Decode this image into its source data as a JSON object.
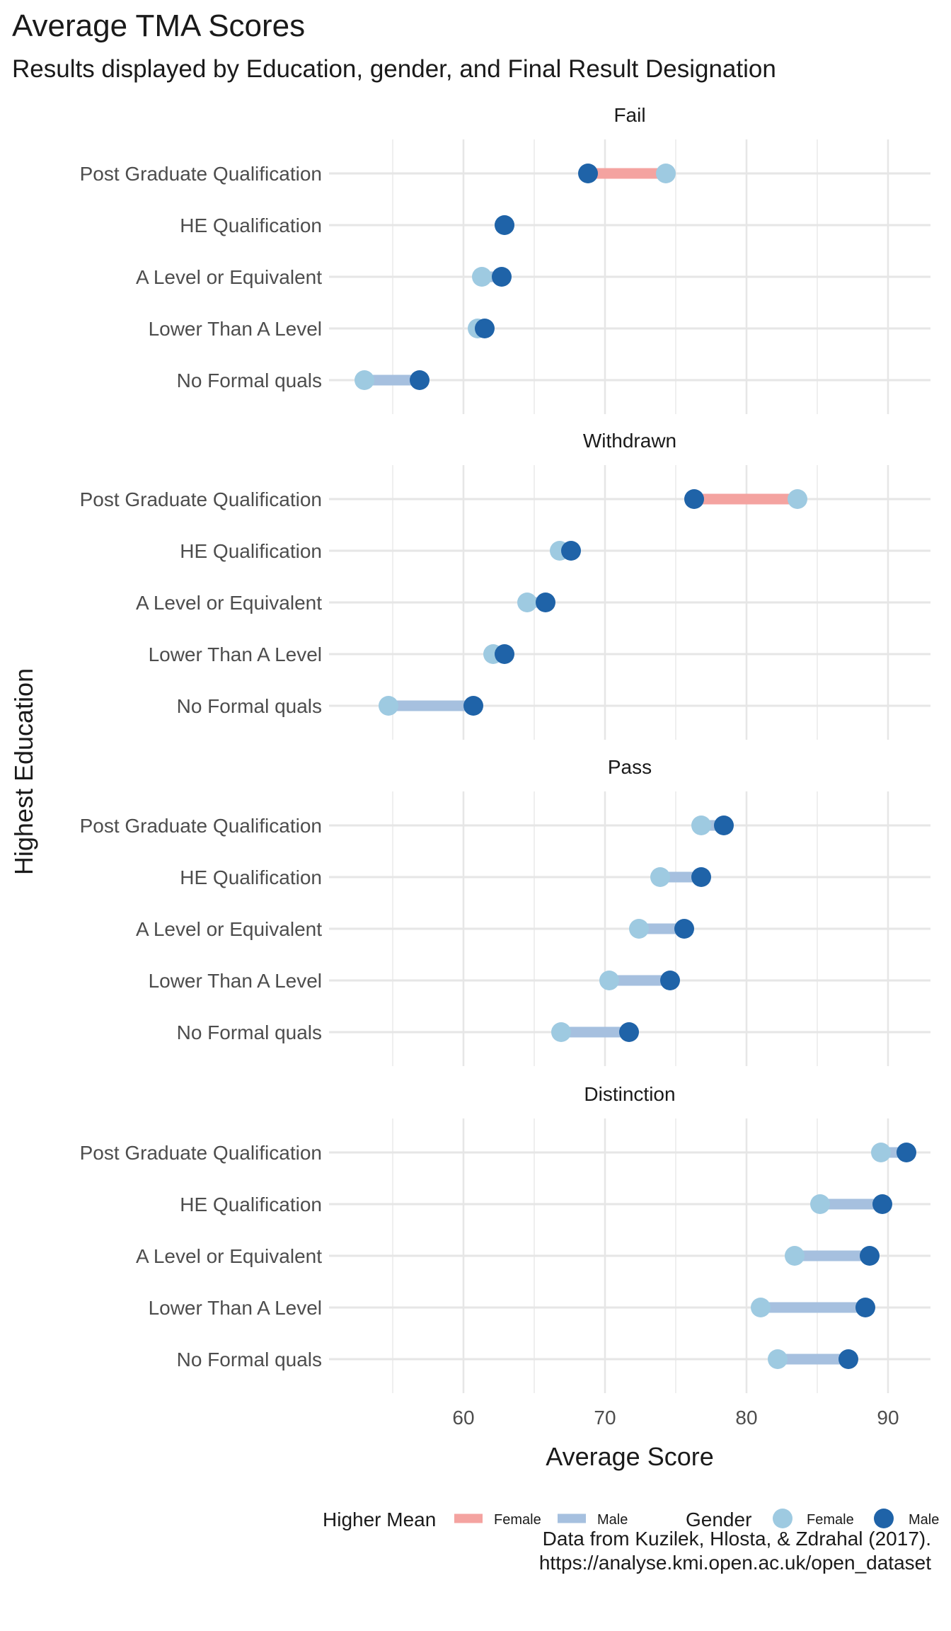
{
  "title": "Average TMA Scores",
  "subtitle": "Results displayed by Education, gender, and Final Result Designation",
  "caption": [
    "Data from Kuzilek, Hlosta, & Zdrahal (2017).",
    "https://analyse.kmi.open.ac.uk/open_dataset"
  ],
  "colors": {
    "female_point": "#9ecae1",
    "male_point": "#1f63a8",
    "higher_female_bar": "#f4a3a0",
    "higher_male_bar": "#a6c0df",
    "grid": "#e6e6e6",
    "text": "#4d4d4d"
  },
  "legend": {
    "higher_mean_title": "Higher Mean",
    "higher_mean_items": [
      "Female",
      "Male"
    ],
    "gender_title": "Gender",
    "gender_items": [
      "Female",
      "Male"
    ]
  },
  "chart_data": {
    "type": "dumbbell",
    "xlabel": "Average Score",
    "ylabel": "Highest Education",
    "xlim": [
      50.5,
      93
    ],
    "xticks": [
      60,
      70,
      80,
      90
    ],
    "categories": [
      "Post Graduate Qualification",
      "HE Qualification",
      "A Level or Equivalent",
      "Lower Than A Level",
      "No Formal quals"
    ],
    "panels": [
      {
        "name": "Fail",
        "female": [
          74.3,
          62.9,
          61.3,
          61.0,
          53.0
        ],
        "male": [
          68.8,
          62.9,
          62.7,
          61.5,
          56.9
        ],
        "higher": [
          "Female",
          "Male",
          "Male",
          "Male",
          "Male"
        ]
      },
      {
        "name": "Withdrawn",
        "female": [
          83.6,
          66.8,
          64.5,
          62.1,
          54.7
        ],
        "male": [
          76.3,
          67.6,
          65.8,
          62.9,
          60.7
        ],
        "higher": [
          "Female",
          "Male",
          "Male",
          "Male",
          "Male"
        ]
      },
      {
        "name": "Pass",
        "female": [
          76.8,
          73.9,
          72.4,
          70.3,
          66.9
        ],
        "male": [
          78.4,
          76.8,
          75.6,
          74.6,
          71.7
        ],
        "higher": [
          "Male",
          "Male",
          "Male",
          "Male",
          "Male"
        ]
      },
      {
        "name": "Distinction",
        "female": [
          89.5,
          85.2,
          83.4,
          81.0,
          82.2
        ],
        "male": [
          91.3,
          89.6,
          88.7,
          88.4,
          87.2
        ],
        "higher": [
          "Male",
          "Male",
          "Male",
          "Male",
          "Male"
        ]
      }
    ]
  }
}
